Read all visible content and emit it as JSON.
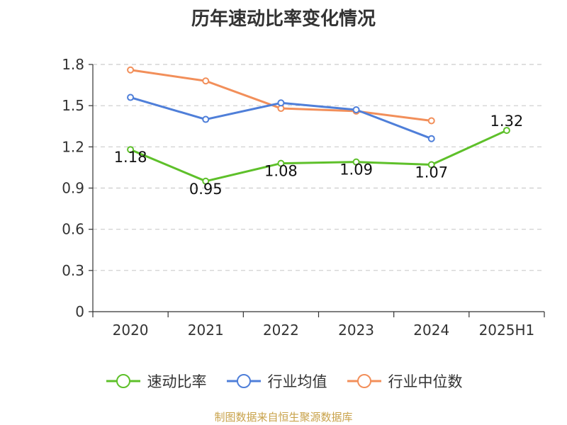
{
  "chart_data": {
    "type": "line",
    "title": "历年速动比率变化情况",
    "categories": [
      "2020",
      "2021",
      "2022",
      "2023",
      "2024",
      "2025H1"
    ],
    "yticks": [
      "0",
      "0.3",
      "0.6",
      "0.9",
      "1.2",
      "1.5",
      "1.8"
    ],
    "ylim": [
      0,
      1.8
    ],
    "grid": true,
    "legend_position": "bottom",
    "series": [
      {
        "name": "速动比率",
        "color": "#5ec02a",
        "values": [
          1.18,
          0.95,
          1.08,
          1.09,
          1.07,
          1.32
        ],
        "labels": [
          "1.18",
          "0.95",
          "1.08",
          "1.09",
          "1.07",
          "1.32"
        ]
      },
      {
        "name": "行业均值",
        "color": "#4f7fd9",
        "values": [
          1.56,
          1.4,
          1.52,
          1.47,
          1.26,
          null
        ]
      },
      {
        "name": "行业中位数",
        "color": "#f28f5a",
        "values": [
          1.76,
          1.68,
          1.48,
          1.46,
          1.39,
          null
        ]
      }
    ]
  },
  "source": "制图数据来自恒生聚源数据库"
}
